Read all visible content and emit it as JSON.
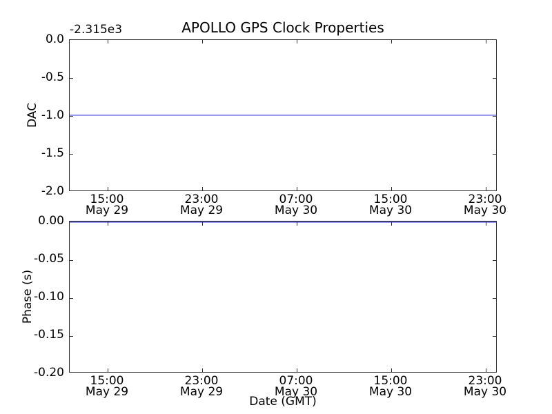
{
  "figure": {
    "title": "APOLLO GPS Clock Properties"
  },
  "colors": {
    "spine": "#2d2d2d",
    "text": "#000000",
    "dac_line": "#9a9aee",
    "phase_line": "#9a9aee"
  },
  "xticks": [
    {
      "time": "15:00",
      "date": "May 29"
    },
    {
      "time": "23:00",
      "date": "May 29"
    },
    {
      "time": "07:00",
      "date": "May 30"
    },
    {
      "time": "15:00",
      "date": "May 30"
    },
    {
      "time": "23:00",
      "date": "May 30"
    }
  ],
  "top_plot": {
    "ylabel": "DAC",
    "offset_text": "-2.315e3",
    "yticks": [
      "0.0",
      "-0.5",
      "-1.0",
      "-1.5",
      "-2.0"
    ]
  },
  "bottom_plot": {
    "ylabel": "Phase (s)",
    "xlabel": "Date (GMT)",
    "yticks": [
      "0.00",
      "-0.05",
      "-0.10",
      "-0.15",
      "-0.20"
    ]
  },
  "chart_data": [
    {
      "type": "line",
      "title": "APOLLO GPS Clock Properties",
      "ylabel": "DAC",
      "xlabel": "",
      "y_offset_text": "-2.315e3",
      "ylim": [
        -2.0,
        0.0
      ],
      "ytick_labels": [
        "0.0",
        "-0.5",
        "-1.0",
        "-1.5",
        "-2.0"
      ],
      "x_tick_labels": [
        "15:00 May 29",
        "23:00 May 29",
        "07:00 May 30",
        "15:00 May 30",
        "23:00 May 30"
      ],
      "grid": false,
      "legend": null,
      "series": [
        {
          "name": "DAC",
          "color": "#9a9aee",
          "shape": "constant horizontal line spanning full x range",
          "display_value": -1.0,
          "actual_value_with_offset": -2316.0
        }
      ]
    },
    {
      "type": "line",
      "title": "",
      "ylabel": "Phase (s)",
      "xlabel": "Date (GMT)",
      "ylim": [
        -0.2,
        0.0
      ],
      "ytick_labels": [
        "0.00",
        "-0.05",
        "-0.10",
        "-0.15",
        "-0.20"
      ],
      "x_tick_labels": [
        "15:00 May 29",
        "23:00 May 29",
        "07:00 May 30",
        "15:00 May 30",
        "23:00 May 30"
      ],
      "grid": false,
      "legend": null,
      "series": [
        {
          "name": "Phase (s)",
          "color": "#9a9aee",
          "shape": "constant horizontal line along top axis spanning full x range",
          "display_value": 0.0
        }
      ]
    }
  ]
}
